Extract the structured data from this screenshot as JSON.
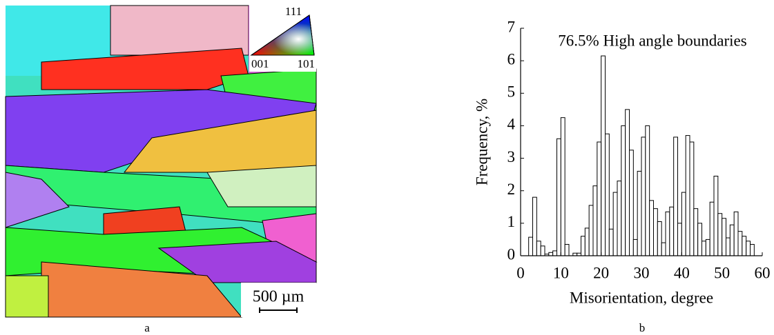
{
  "panel_a": {
    "color_key": [
      "111",
      "001",
      "101"
    ],
    "scale_bar": "500 µm",
    "caption": "a"
  },
  "chart_data": {
    "type": "histogram",
    "caption": "b",
    "annotation": "76.5% High angle boundaries",
    "x_label": "Misorientation, degree",
    "y_label": "Frequency, %",
    "bins": [
      2,
      3,
      4,
      5,
      6,
      7,
      8,
      9,
      10,
      11,
      12,
      13,
      14,
      15,
      16,
      17,
      18,
      19,
      20,
      21,
      22,
      23,
      24,
      25,
      26,
      27,
      28,
      29,
      30,
      31,
      32,
      33,
      34,
      35,
      36,
      37,
      38,
      39,
      40,
      41,
      42,
      43,
      44,
      45,
      46,
      47,
      48,
      49,
      50,
      51,
      52,
      53,
      54,
      55,
      56,
      57,
      58
    ],
    "values": [
      0.57,
      1.8,
      0.45,
      0.3,
      0.05,
      0.1,
      0.15,
      3.6,
      4.25,
      0.35,
      0,
      0.08,
      0.08,
      0.6,
      0.85,
      1.55,
      2.15,
      3.5,
      6.15,
      3.75,
      0.82,
      1.95,
      2.3,
      4.0,
      4.5,
      3.25,
      0.5,
      2.6,
      3.65,
      4.0,
      1.7,
      1.45,
      1.05,
      0.4,
      1.35,
      1.5,
      3.65,
      1.0,
      1.95,
      3.7,
      3.5,
      1.45,
      1.0,
      0.45,
      0.5,
      1.65,
      2.45,
      1.3,
      1.15,
      0.55,
      0.95,
      1.35,
      0.75,
      0.6,
      0.45,
      0.35,
      0.5
    ],
    "color": "#ffffff",
    "xlim": [
      0,
      60
    ],
    "xticks": [
      0,
      10,
      20,
      30,
      40,
      50,
      60
    ],
    "ylim": [
      0,
      7
    ],
    "yticks": [
      0,
      1,
      2,
      3,
      4,
      5,
      6,
      7
    ]
  }
}
